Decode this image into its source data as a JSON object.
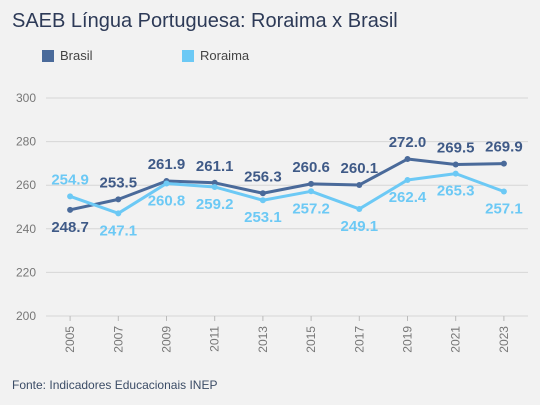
{
  "title": "SAEB Língua Portuguesa: Roraima x Brasil",
  "source": "Fonte: Indicadores Educacionais INEP",
  "chart_data": {
    "type": "line",
    "title": "SAEB Língua Portuguesa: Roraima x Brasil",
    "xlabel": "",
    "ylabel": "",
    "x": [
      "2005",
      "2007",
      "2009",
      "2011",
      "2013",
      "2015",
      "2017",
      "2019",
      "2021",
      "2023"
    ],
    "series": [
      {
        "name": "Brasil",
        "color": "#4a6a9a",
        "values": [
          248.7,
          253.5,
          261.9,
          261.1,
          256.3,
          260.6,
          260.1,
          272.0,
          269.5,
          269.9
        ],
        "labels": [
          "248.7",
          "253.5",
          "261.9",
          "261.1",
          "256.3",
          "260.6",
          "260.1",
          "272.0",
          "269.5",
          "269.9"
        ]
      },
      {
        "name": "Roraima",
        "color": "#6cc9f5",
        "values": [
          254.9,
          247.1,
          260.8,
          259.2,
          253.1,
          257.2,
          249.1,
          262.4,
          265.3,
          257.1
        ],
        "labels": [
          "254.9",
          "247.1",
          "260.8",
          "259.2",
          "253.1",
          "257.2",
          "249.1",
          "262.4",
          "265.3",
          "257.1"
        ]
      }
    ],
    "ylim": [
      200,
      300
    ],
    "yticks": [
      200,
      220,
      240,
      260,
      280,
      300
    ],
    "grid": true,
    "legend": "top-left"
  }
}
